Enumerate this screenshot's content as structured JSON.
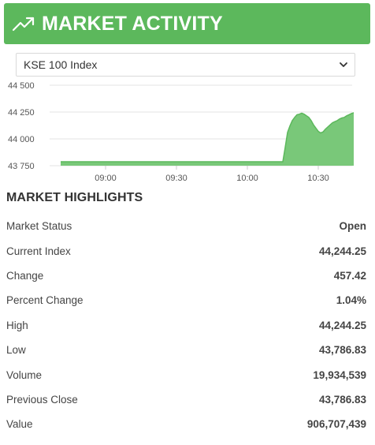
{
  "header": {
    "title": "MARKET ACTIVITY",
    "icon": "trending-up-icon",
    "color": "#5cb85c"
  },
  "index_select": {
    "selected": "KSE 100 Index"
  },
  "chart_data": {
    "type": "area",
    "title": "",
    "xlabel": "",
    "ylabel": "",
    "y_ticks": [
      "44 500",
      "44 250",
      "44 000",
      "43 750"
    ],
    "y_tick_values": [
      44500,
      44250,
      44000,
      43750
    ],
    "x_ticks": [
      "09:00",
      "09:30",
      "10:00",
      "10:30"
    ],
    "ylim": [
      43750,
      44500
    ],
    "grid": true,
    "legend": "none",
    "fill_color": "#79c879",
    "line_color": "#5cb85c",
    "series": [
      {
        "x": [
          "08:41",
          "09:00",
          "09:30",
          "10:00",
          "10:15",
          "10:16",
          "10:17",
          "10:18",
          "10:19",
          "10:20",
          "10:21",
          "10:22",
          "10:23",
          "10:24",
          "10:25",
          "10:26",
          "10:27",
          "10:28",
          "10:29",
          "10:30",
          "10:31",
          "10:32",
          "10:33",
          "10:34",
          "10:35",
          "10:36",
          "10:37",
          "10:38",
          "10:39",
          "10:40",
          "10:41",
          "10:42",
          "10:43",
          "10:44",
          "10:45"
        ],
        "values": [
          43787,
          43787,
          43787,
          43787,
          43787,
          43920,
          44060,
          44120,
          44170,
          44200,
          44225,
          44230,
          44240,
          44230,
          44215,
          44200,
          44170,
          44130,
          44100,
          44070,
          44055,
          44065,
          44090,
          44110,
          44130,
          44150,
          44160,
          44170,
          44185,
          44195,
          44200,
          44215,
          44225,
          44235,
          44244
        ]
      }
    ]
  },
  "highlights": {
    "title": "MARKET HIGHLIGHTS",
    "rows": [
      {
        "label": "Market Status",
        "value": "Open"
      },
      {
        "label": "Current Index",
        "value": "44,244.25"
      },
      {
        "label": "Change",
        "value": "457.42"
      },
      {
        "label": "Percent Change",
        "value": "1.04%"
      },
      {
        "label": "High",
        "value": "44,244.25"
      },
      {
        "label": "Low",
        "value": "43,786.83"
      },
      {
        "label": "Volume",
        "value": "19,934,539"
      },
      {
        "label": "Previous Close",
        "value": "43,786.83"
      },
      {
        "label": "Value",
        "value": "906,707,439"
      }
    ]
  }
}
